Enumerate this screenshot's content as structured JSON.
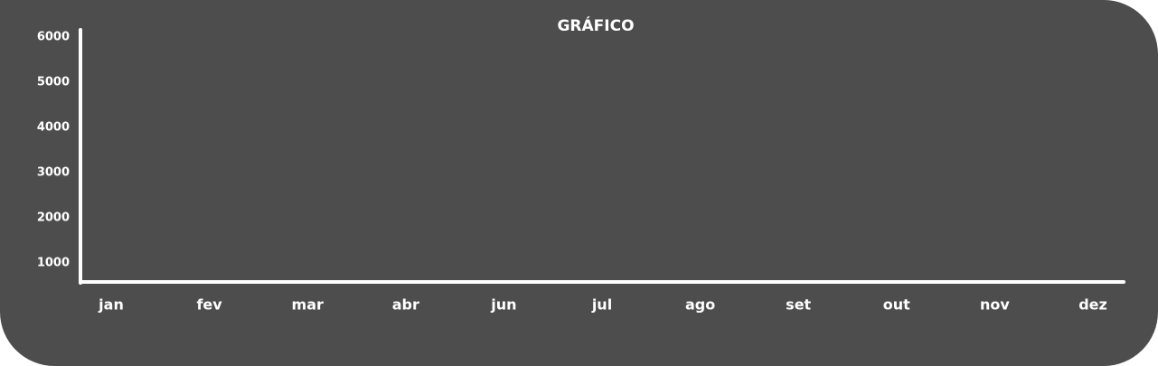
{
  "title": "GRÁFICO",
  "y_axis_labels": [
    "6000",
    "5000",
    "4000",
    "3000",
    "2000",
    "1000"
  ],
  "x_axis_labels": [
    "jan",
    "fev",
    "mar",
    "abr",
    "jun",
    "jul",
    "ago",
    "set",
    "out",
    "nov",
    "dez"
  ]
}
